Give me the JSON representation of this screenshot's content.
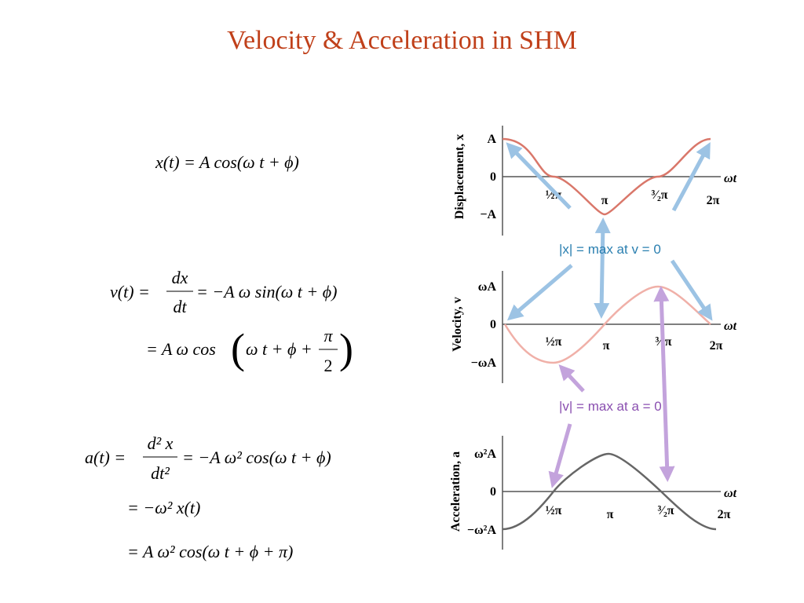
{
  "title": "Velocity & Acceleration in SHM",
  "equations": {
    "x": {
      "line1": "x(t) = A cos(ω t + ϕ)"
    },
    "v": {
      "lhs": "v(t) =",
      "num": "dx",
      "den": "dt",
      "rhs": "= −A ω sin(ω t + ϕ)",
      "line2_lhs": "= A ω cos",
      "line2_open": "(",
      "line2_mid": "ω t + ϕ +",
      "line2_num": "π",
      "line2_den": "2",
      "line2_close": ")"
    },
    "a": {
      "lhs": "a(t) =",
      "num": "d² x",
      "den": "dt²",
      "rhs": "= −A ω² cos(ω t + ϕ)",
      "line2": "= −ω² x(t)",
      "line3": "= A ω² cos(ω t + ϕ + π)"
    }
  },
  "graphs": [
    {
      "ylabel": "Displacement, x",
      "yticks": [
        "A",
        "0",
        "−A"
      ],
      "xticks": [
        "½π",
        "π",
        "³⁄₂π",
        "2π"
      ],
      "xlabel": "ωt"
    },
    {
      "ylabel": "Velocity, v",
      "yticks": [
        "ωA",
        "0",
        "−ωA"
      ],
      "xticks": [
        "½π",
        "π",
        "³⁄₂π",
        "2π"
      ],
      "xlabel": "ωt"
    },
    {
      "ylabel": "Acceleration, a",
      "yticks": [
        "ω²A",
        "0",
        "−ω²A"
      ],
      "xticks": [
        "½π",
        "π",
        "³⁄₂π",
        "2π"
      ],
      "xlabel": "ωt"
    }
  ],
  "annotations": [
    "|x| = max at v = 0",
    "|v| = max at a = 0"
  ]
}
